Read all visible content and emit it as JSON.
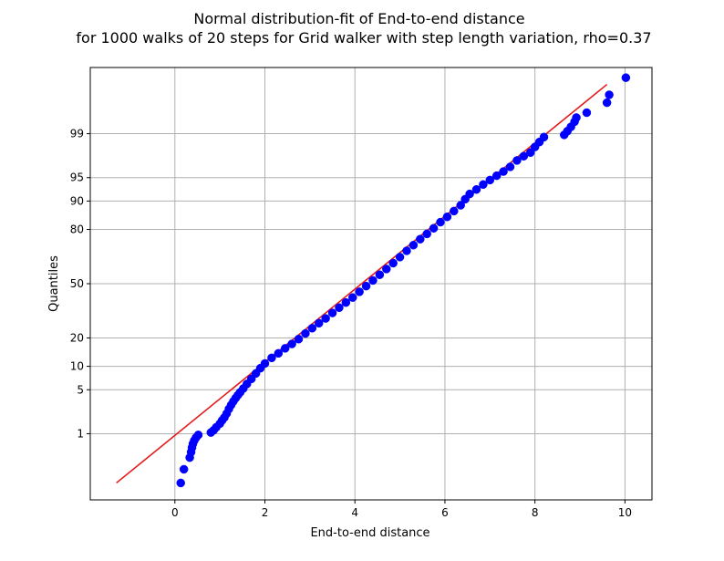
{
  "chart_data": {
    "type": "scatter",
    "title_lines": [
      "Normal distribution-fit of End-to-end distance",
      "for 1000 walks of 20 steps for Grid walker with step length variation, rho=0.37"
    ],
    "xlabel": "End-to-end distance",
    "ylabel": "Quantiles",
    "x_ticks": [
      0,
      2,
      4,
      6,
      8,
      10
    ],
    "y_ticks": [
      1,
      5,
      10,
      20,
      50,
      80,
      90,
      95,
      99
    ],
    "y_scale": "normal-probability",
    "xlim": [
      -1.88,
      10.6
    ],
    "ylim_percent": [
      0.04,
      99.96
    ],
    "grid": true,
    "colors": {
      "points": "#0000ff",
      "fit_line": "#e41a1c",
      "grid": "#b0b0b0"
    },
    "fit_line": {
      "start": [
        -1.3,
        0.1
      ],
      "end": [
        9.6,
        99.9
      ]
    },
    "series": [
      {
        "kind": "points",
        "points": [
          [
            0.13,
            0.1
          ],
          [
            0.2,
            0.2
          ],
          [
            0.33,
            0.35
          ],
          [
            0.36,
            0.45
          ],
          [
            0.38,
            0.55
          ],
          [
            0.4,
            0.65
          ],
          [
            0.43,
            0.75
          ],
          [
            0.47,
            0.85
          ],
          [
            0.52,
            0.95
          ],
          [
            0.8,
            1.05
          ],
          [
            0.86,
            1.15
          ],
          [
            0.92,
            1.3
          ],
          [
            1.0,
            1.5
          ],
          [
            1.05,
            1.7
          ],
          [
            1.1,
            1.9
          ],
          [
            1.15,
            2.2
          ],
          [
            1.2,
            2.6
          ],
          [
            1.25,
            3.0
          ],
          [
            1.3,
            3.4
          ],
          [
            1.35,
            3.8
          ],
          [
            1.4,
            4.2
          ],
          [
            1.45,
            4.6
          ],
          [
            1.52,
            5.2
          ],
          [
            1.6,
            6.0
          ],
          [
            1.7,
            7.0
          ],
          [
            1.8,
            8.2
          ],
          [
            1.9,
            9.5
          ],
          [
            2.0,
            10.8
          ],
          [
            2.15,
            12.5
          ],
          [
            2.3,
            14.0
          ],
          [
            2.45,
            15.8
          ],
          [
            2.6,
            17.5
          ],
          [
            2.75,
            19.5
          ],
          [
            2.9,
            22.0
          ],
          [
            3.05,
            24.5
          ],
          [
            3.2,
            27.0
          ],
          [
            3.35,
            29.5
          ],
          [
            3.5,
            32.5
          ],
          [
            3.65,
            35.5
          ],
          [
            3.8,
            38.5
          ],
          [
            3.95,
            41.5
          ],
          [
            4.1,
            45.0
          ],
          [
            4.25,
            48.5
          ],
          [
            4.4,
            52.0
          ],
          [
            4.55,
            55.5
          ],
          [
            4.7,
            59.0
          ],
          [
            4.85,
            62.5
          ],
          [
            5.0,
            66.0
          ],
          [
            5.15,
            69.5
          ],
          [
            5.3,
            72.5
          ],
          [
            5.45,
            75.5
          ],
          [
            5.6,
            78.0
          ],
          [
            5.75,
            80.5
          ],
          [
            5.9,
            83.0
          ],
          [
            6.05,
            85.0
          ],
          [
            6.2,
            87.0
          ],
          [
            6.35,
            88.8
          ],
          [
            6.45,
            90.5
          ],
          [
            6.55,
            91.8
          ],
          [
            6.7,
            92.8
          ],
          [
            6.85,
            93.8
          ],
          [
            7.0,
            94.6
          ],
          [
            7.15,
            95.3
          ],
          [
            7.3,
            95.9
          ],
          [
            7.45,
            96.5
          ],
          [
            7.6,
            97.2
          ],
          [
            7.75,
            97.6
          ],
          [
            7.9,
            97.9
          ],
          [
            8.0,
            98.3
          ],
          [
            8.1,
            98.6
          ],
          [
            8.2,
            98.85
          ],
          [
            8.65,
            98.95
          ],
          [
            8.72,
            99.1
          ],
          [
            8.8,
            99.25
          ],
          [
            8.88,
            99.4
          ],
          [
            8.92,
            99.5
          ],
          [
            9.15,
            99.6
          ],
          [
            9.6,
            99.75
          ],
          [
            9.65,
            99.83
          ],
          [
            10.02,
            99.93
          ]
        ]
      },
      {
        "kind": "fit-line"
      }
    ]
  }
}
